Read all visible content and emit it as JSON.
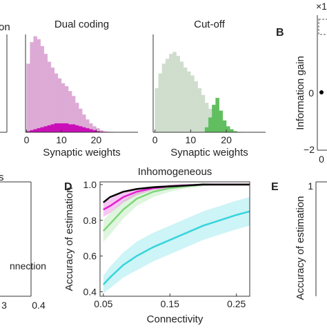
{
  "chart_data": [
    {
      "type": "histogram",
      "title": "Dual coding",
      "xlabel": "Synaptic weights",
      "bins": [
        0,
        1,
        2,
        3,
        4,
        5,
        6,
        7,
        8,
        9,
        10,
        11,
        12,
        13,
        14,
        15,
        16,
        17,
        18,
        19,
        20,
        21,
        22,
        23,
        24,
        25
      ],
      "xlim": [
        -0.3,
        32
      ],
      "ylim": [
        0,
        100
      ],
      "xticks": [
        0,
        10,
        20
      ],
      "series": [
        {
          "color": "#f5bdee",
          "values": [
            70,
            92,
            98,
            95,
            88,
            80,
            72,
            66,
            60,
            55,
            50,
            47,
            42,
            37,
            30,
            24,
            18,
            13,
            9,
            6,
            4,
            2,
            1,
            0.5,
            0.3
          ]
        },
        {
          "color": "#e010cc",
          "values": [
            1,
            2,
            3,
            4,
            5,
            6,
            7,
            8,
            9,
            9,
            9,
            9,
            8,
            8,
            7,
            6,
            5,
            4,
            3,
            2,
            1,
            0.5,
            0,
            0,
            0
          ]
        }
      ]
    },
    {
      "type": "histogram",
      "title": "Cut-off",
      "xlabel": "Synaptic weights",
      "bins": [
        0,
        1,
        2,
        3,
        4,
        5,
        6,
        7,
        8,
        9,
        10,
        11,
        12,
        13,
        14,
        15,
        16,
        17,
        18,
        19,
        20,
        21,
        22,
        23,
        24,
        25
      ],
      "xlim": [
        -0.5,
        31
      ],
      "ylim": [
        0,
        100
      ],
      "xticks": [
        0,
        10,
        20
      ],
      "series": [
        {
          "color": "#e6f6e4",
          "values": [
            45,
            60,
            70,
            75,
            80,
            82,
            78,
            72,
            66,
            62,
            58,
            52,
            45,
            38,
            30,
            24,
            18,
            12,
            8,
            5,
            3,
            2,
            1,
            0.5,
            0.3
          ]
        },
        {
          "color": "#6cd36a",
          "values": [
            0,
            0,
            0,
            0,
            0,
            0,
            0,
            0,
            0,
            0,
            0,
            0,
            0,
            0,
            5,
            15,
            28,
            35,
            22,
            12,
            6,
            3,
            1,
            0,
            0
          ]
        }
      ]
    },
    {
      "type": "line",
      "title": "Inhomogeneous",
      "xlabel": "Connectivity",
      "ylabel": "Accuracy of estimation",
      "x": [
        0.05,
        0.06,
        0.08,
        0.1,
        0.125,
        0.15,
        0.175,
        0.2,
        0.225,
        0.25,
        0.27
      ],
      "xlim": [
        0.045,
        0.27
      ],
      "ylim": [
        0.375,
        1.015
      ],
      "xticks": [
        0.05,
        0.15,
        0.25
      ],
      "yticks": [
        0.4,
        0.6,
        0.8,
        {
          "value": 1.0,
          "label": "1.0"
        }
      ],
      "series": [
        {
          "color": "#36d4dc",
          "values": [
            0.44,
            0.48,
            0.55,
            0.6,
            0.65,
            0.69,
            0.73,
            0.77,
            0.8,
            0.83,
            0.85
          ],
          "errors": [
            0.05,
            0.06,
            0.07,
            0.08,
            0.08,
            0.08,
            0.08,
            0.08,
            0.08,
            0.08,
            0.08
          ]
        },
        {
          "color": "#7fd67a",
          "values": [
            0.74,
            0.78,
            0.86,
            0.92,
            0.96,
            0.98,
            0.99,
            1,
            1,
            1,
            1
          ],
          "errors": [
            0.06,
            0.06,
            0.05,
            0.04,
            0.03,
            0.02,
            0.01,
            0.01,
            0,
            0,
            0
          ]
        },
        {
          "color": "#e020d0",
          "values": [
            0.86,
            0.88,
            0.93,
            0.96,
            0.98,
            0.99,
            0.995,
            1,
            1,
            1,
            1
          ],
          "errors": [
            0.04,
            0.04,
            0.03,
            0.02,
            0.01,
            0.01,
            0.01,
            0,
            0,
            0,
            0
          ]
        },
        {
          "color": "#000000",
          "values": [
            0.9,
            0.93,
            0.96,
            0.975,
            0.985,
            0.99,
            0.995,
            1,
            1,
            1,
            1
          ],
          "errors": [
            0,
            0,
            0,
            0,
            0,
            0,
            0,
            0,
            0,
            0,
            0
          ]
        }
      ]
    }
  ],
  "fragments": {
    "top_left_title": "on",
    "panel_b": "B",
    "b_multiplier": "×1",
    "b_ylabel": "Information gain",
    "b_ytick_0": "0",
    "b_ytick_neg": "−2",
    "b_xtick": "0",
    "bottom_left_title": "s",
    "bottom_left_legend": "nnection",
    "bottom_left_xtick_a": "3",
    "bottom_left_xtick_b": "0.4",
    "panel_d": "D",
    "panel_e": "E",
    "e_ylabel": "Accuracy of estimation",
    "e_ytick": "1"
  }
}
